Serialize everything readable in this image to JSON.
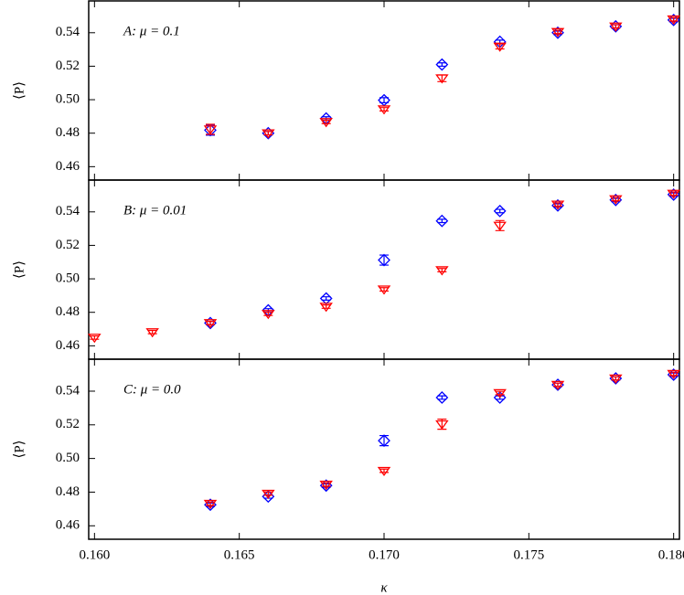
{
  "chart_data": [
    {
      "type": "scatter",
      "annotation": "A: μ = 0.1",
      "ylabel": "⟨P⟩",
      "xlim": [
        0.1598,
        0.1802
      ],
      "xticks": [
        0.16,
        0.165,
        0.17,
        0.175,
        0.18
      ],
      "ylim": [
        0.452,
        0.559
      ],
      "yticks": [
        0.46,
        0.48,
        {
          "value": 0.5,
          "label": "0.50"
        },
        0.52,
        0.54
      ],
      "series": [
        {
          "color": "#0000ff",
          "marker": "diamond",
          "x": [
            0.164,
            0.166,
            0.168,
            0.17,
            0.172,
            0.174,
            0.176,
            0.178,
            0.18
          ],
          "values": [
            0.4818,
            0.48,
            0.4888,
            0.4997,
            0.521,
            0.5346,
            0.54,
            0.5438,
            0.5476
          ],
          "errors": [
            0.003,
            0.001,
            0.001,
            0.0015,
            0.001,
            0.001,
            0.001,
            0.001,
            0.001
          ]
        },
        {
          "color": "#ff0000",
          "marker": "triangle-down",
          "x": [
            0.164,
            0.166,
            0.168,
            0.17,
            0.172,
            0.174,
            0.176,
            0.178,
            0.18
          ],
          "values": [
            0.4823,
            0.48,
            0.4867,
            0.4943,
            0.5128,
            0.5318,
            0.5405,
            0.5438,
            0.548
          ],
          "errors": [
            0.003,
            0.001,
            0.001,
            0.001,
            0.002,
            0.0015,
            0.001,
            0.001,
            0.001
          ]
        }
      ]
    },
    {
      "type": "scatter",
      "annotation": "B: μ = 0.01",
      "ylabel": "⟨P⟩",
      "xlim": [
        0.1598,
        0.1802
      ],
      "xticks": [
        0.16,
        0.165,
        0.17,
        0.175,
        0.18
      ],
      "ylim": [
        0.452,
        0.559
      ],
      "yticks": [
        0.46,
        0.48,
        {
          "value": 0.5,
          "label": "0.50"
        },
        0.52,
        0.54
      ],
      "series": [
        {
          "color": "#0000ff",
          "marker": "diamond",
          "x": [
            0.164,
            0.166,
            0.168,
            0.17,
            0.172,
            0.174,
            0.176,
            0.178,
            0.18
          ],
          "values": [
            0.4736,
            0.4812,
            0.4883,
            0.5112,
            0.5346,
            0.5405,
            0.5438,
            0.5471,
            0.5503
          ],
          "errors": [
            0.001,
            0.001,
            0.001,
            0.003,
            0.001,
            0.001,
            0.001,
            0.001,
            0.001
          ]
        },
        {
          "color": "#ff0000",
          "marker": "triangle-down",
          "x": [
            0.16,
            0.162,
            0.164,
            0.166,
            0.168,
            0.17,
            0.172,
            0.174,
            0.176,
            0.178,
            0.18
          ],
          "values": [
            0.4649,
            0.4682,
            0.4736,
            0.4791,
            0.4834,
            0.4937,
            0.5052,
            0.5318,
            0.5444,
            0.5476,
            0.5509
          ],
          "errors": [
            0.001,
            0.001,
            0.001,
            0.001,
            0.001,
            0.001,
            0.001,
            0.003,
            0.001,
            0.001,
            0.001
          ]
        }
      ]
    },
    {
      "type": "scatter",
      "annotation": "C: μ = 0.0",
      "ylabel": "⟨P⟩",
      "xlabel": "κ",
      "xlim": [
        0.1598,
        0.1802
      ],
      "xticks": [
        {
          "value": 0.16,
          "label": "0.160"
        },
        {
          "value": 0.165,
          "label": "0.165"
        },
        {
          "value": 0.17,
          "label": "0.170"
        },
        {
          "value": 0.175,
          "label": "0.175"
        },
        {
          "value": 0.18,
          "label": "0.180"
        }
      ],
      "ylim": [
        0.452,
        0.559
      ],
      "yticks": [
        0.46,
        0.48,
        {
          "value": 0.5,
          "label": "0.50"
        },
        0.52,
        0.54
      ],
      "series": [
        {
          "color": "#0000ff",
          "marker": "diamond",
          "x": [
            0.164,
            0.166,
            0.168,
            0.17,
            0.172,
            0.174,
            0.176,
            0.178,
            0.18
          ],
          "values": [
            0.4725,
            0.4774,
            0.4839,
            0.5106,
            0.5362,
            0.5362,
            0.5438,
            0.5476,
            0.5498
          ],
          "errors": [
            0.001,
            0.001,
            0.001,
            0.003,
            0.001,
            0.001,
            0.001,
            0.001,
            0.001
          ]
        },
        {
          "color": "#ff0000",
          "marker": "triangle-down",
          "x": [
            0.164,
            0.166,
            0.168,
            0.17,
            0.172,
            0.174,
            0.176,
            0.178,
            0.18
          ],
          "values": [
            0.4731,
            0.4791,
            0.4845,
            0.4927,
            0.5204,
            0.5389,
            0.5438,
            0.5476,
            0.5503
          ],
          "errors": [
            0.001,
            0.001,
            0.001,
            0.001,
            0.003,
            0.001,
            0.001,
            0.001,
            0.001
          ]
        }
      ]
    }
  ]
}
